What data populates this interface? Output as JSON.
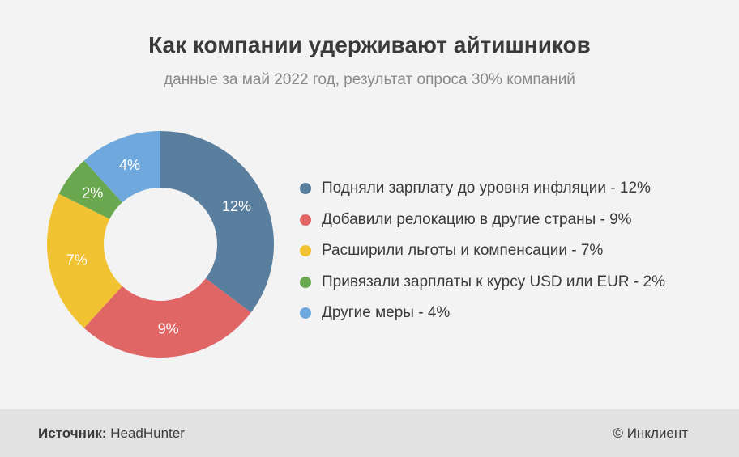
{
  "header": {
    "title": "Как компании удерживают айтишников",
    "subtitle": "данные за май 2022 год, результат опроса 30% компаний"
  },
  "chart_data": {
    "type": "pie",
    "variant": "donut",
    "title": "Как компании удерживают айтишников",
    "subtitle": "данные за май 2022 год, результат опроса 30% компаний",
    "legend_position": "right",
    "slices": [
      {
        "label": "Подняли зарплату до уровня инфляции - 12%",
        "value": 12,
        "data_label": "12%",
        "color": "#5a7f9e"
      },
      {
        "label": "Добавили релокацию в другие страны - 9%",
        "value": 9,
        "data_label": "9%",
        "color": "#e06666"
      },
      {
        "label": "Расширили льготы и компенсации - 7%",
        "value": 7,
        "data_label": "7%",
        "color": "#f1c232"
      },
      {
        "label": "Привязали зарплаты к курсу USD или EUR - 2%",
        "value": 2,
        "data_label": "2%",
        "color": "#6aa84f"
      },
      {
        "label": "Другие меры - 4%",
        "value": 4,
        "data_label": "4%",
        "color": "#6fa8dc"
      }
    ]
  },
  "footer": {
    "source_label": "Источник:",
    "source_value": "HeadHunter",
    "copyright": "© Инклиент"
  }
}
